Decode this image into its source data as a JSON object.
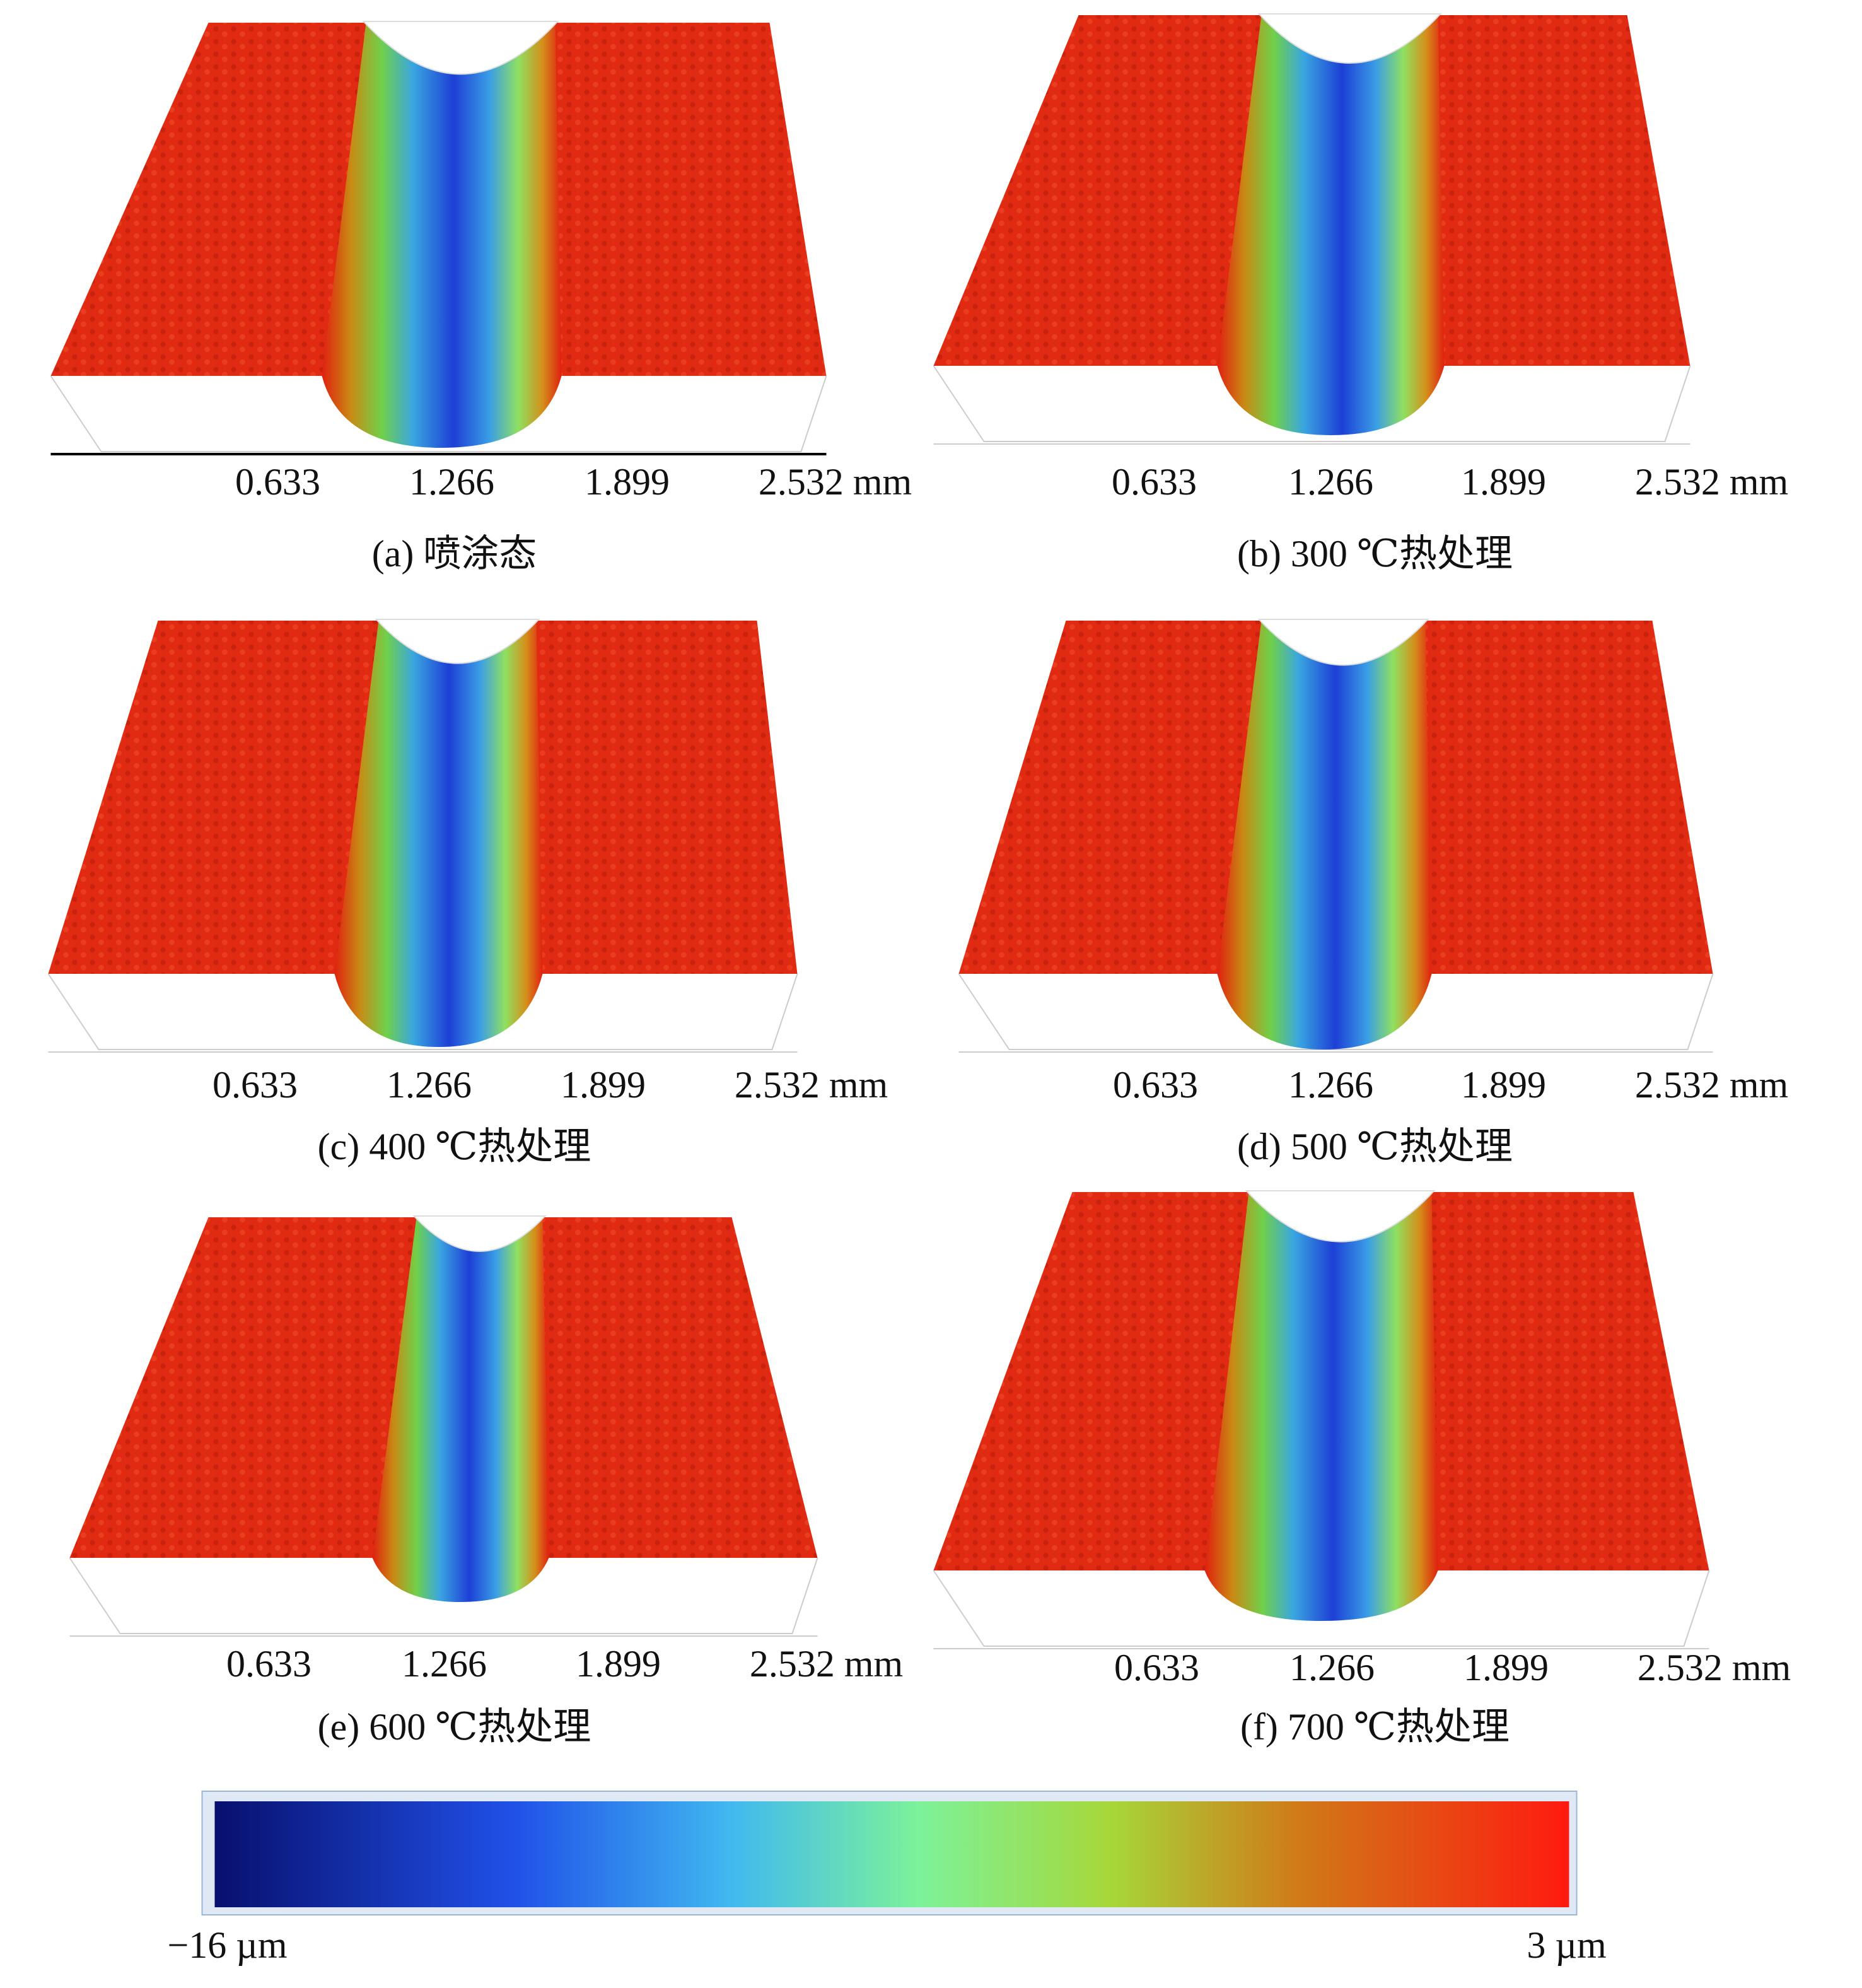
{
  "panels": [
    {
      "caption": "(a) 喷涂态",
      "x_ticks": [
        "0.633",
        "1.266",
        "1.899",
        "2.532 mm"
      ]
    },
    {
      "caption": "(b) 300 ℃热处理",
      "x_ticks": [
        "0.633",
        "1.266",
        "1.899",
        "2.532 mm"
      ]
    },
    {
      "caption": "(c) 400 ℃热处理",
      "x_ticks": [
        "0.633",
        "1.266",
        "1.899",
        "2.532 mm"
      ]
    },
    {
      "caption": "(d) 500 ℃热处理",
      "x_ticks": [
        "0.633",
        "1.266",
        "1.899",
        "2.532 mm"
      ]
    },
    {
      "caption": "(e) 600 ℃热处理",
      "x_ticks": [
        "0.633",
        "1.266",
        "1.899",
        "2.532 mm"
      ]
    },
    {
      "caption": "(f) 700 ℃热处理",
      "x_ticks": [
        "0.633",
        "1.266",
        "1.899",
        "2.532 mm"
      ]
    }
  ],
  "colorbar": {
    "min_label": "−16 µm",
    "max_label": "3 µm"
  }
}
